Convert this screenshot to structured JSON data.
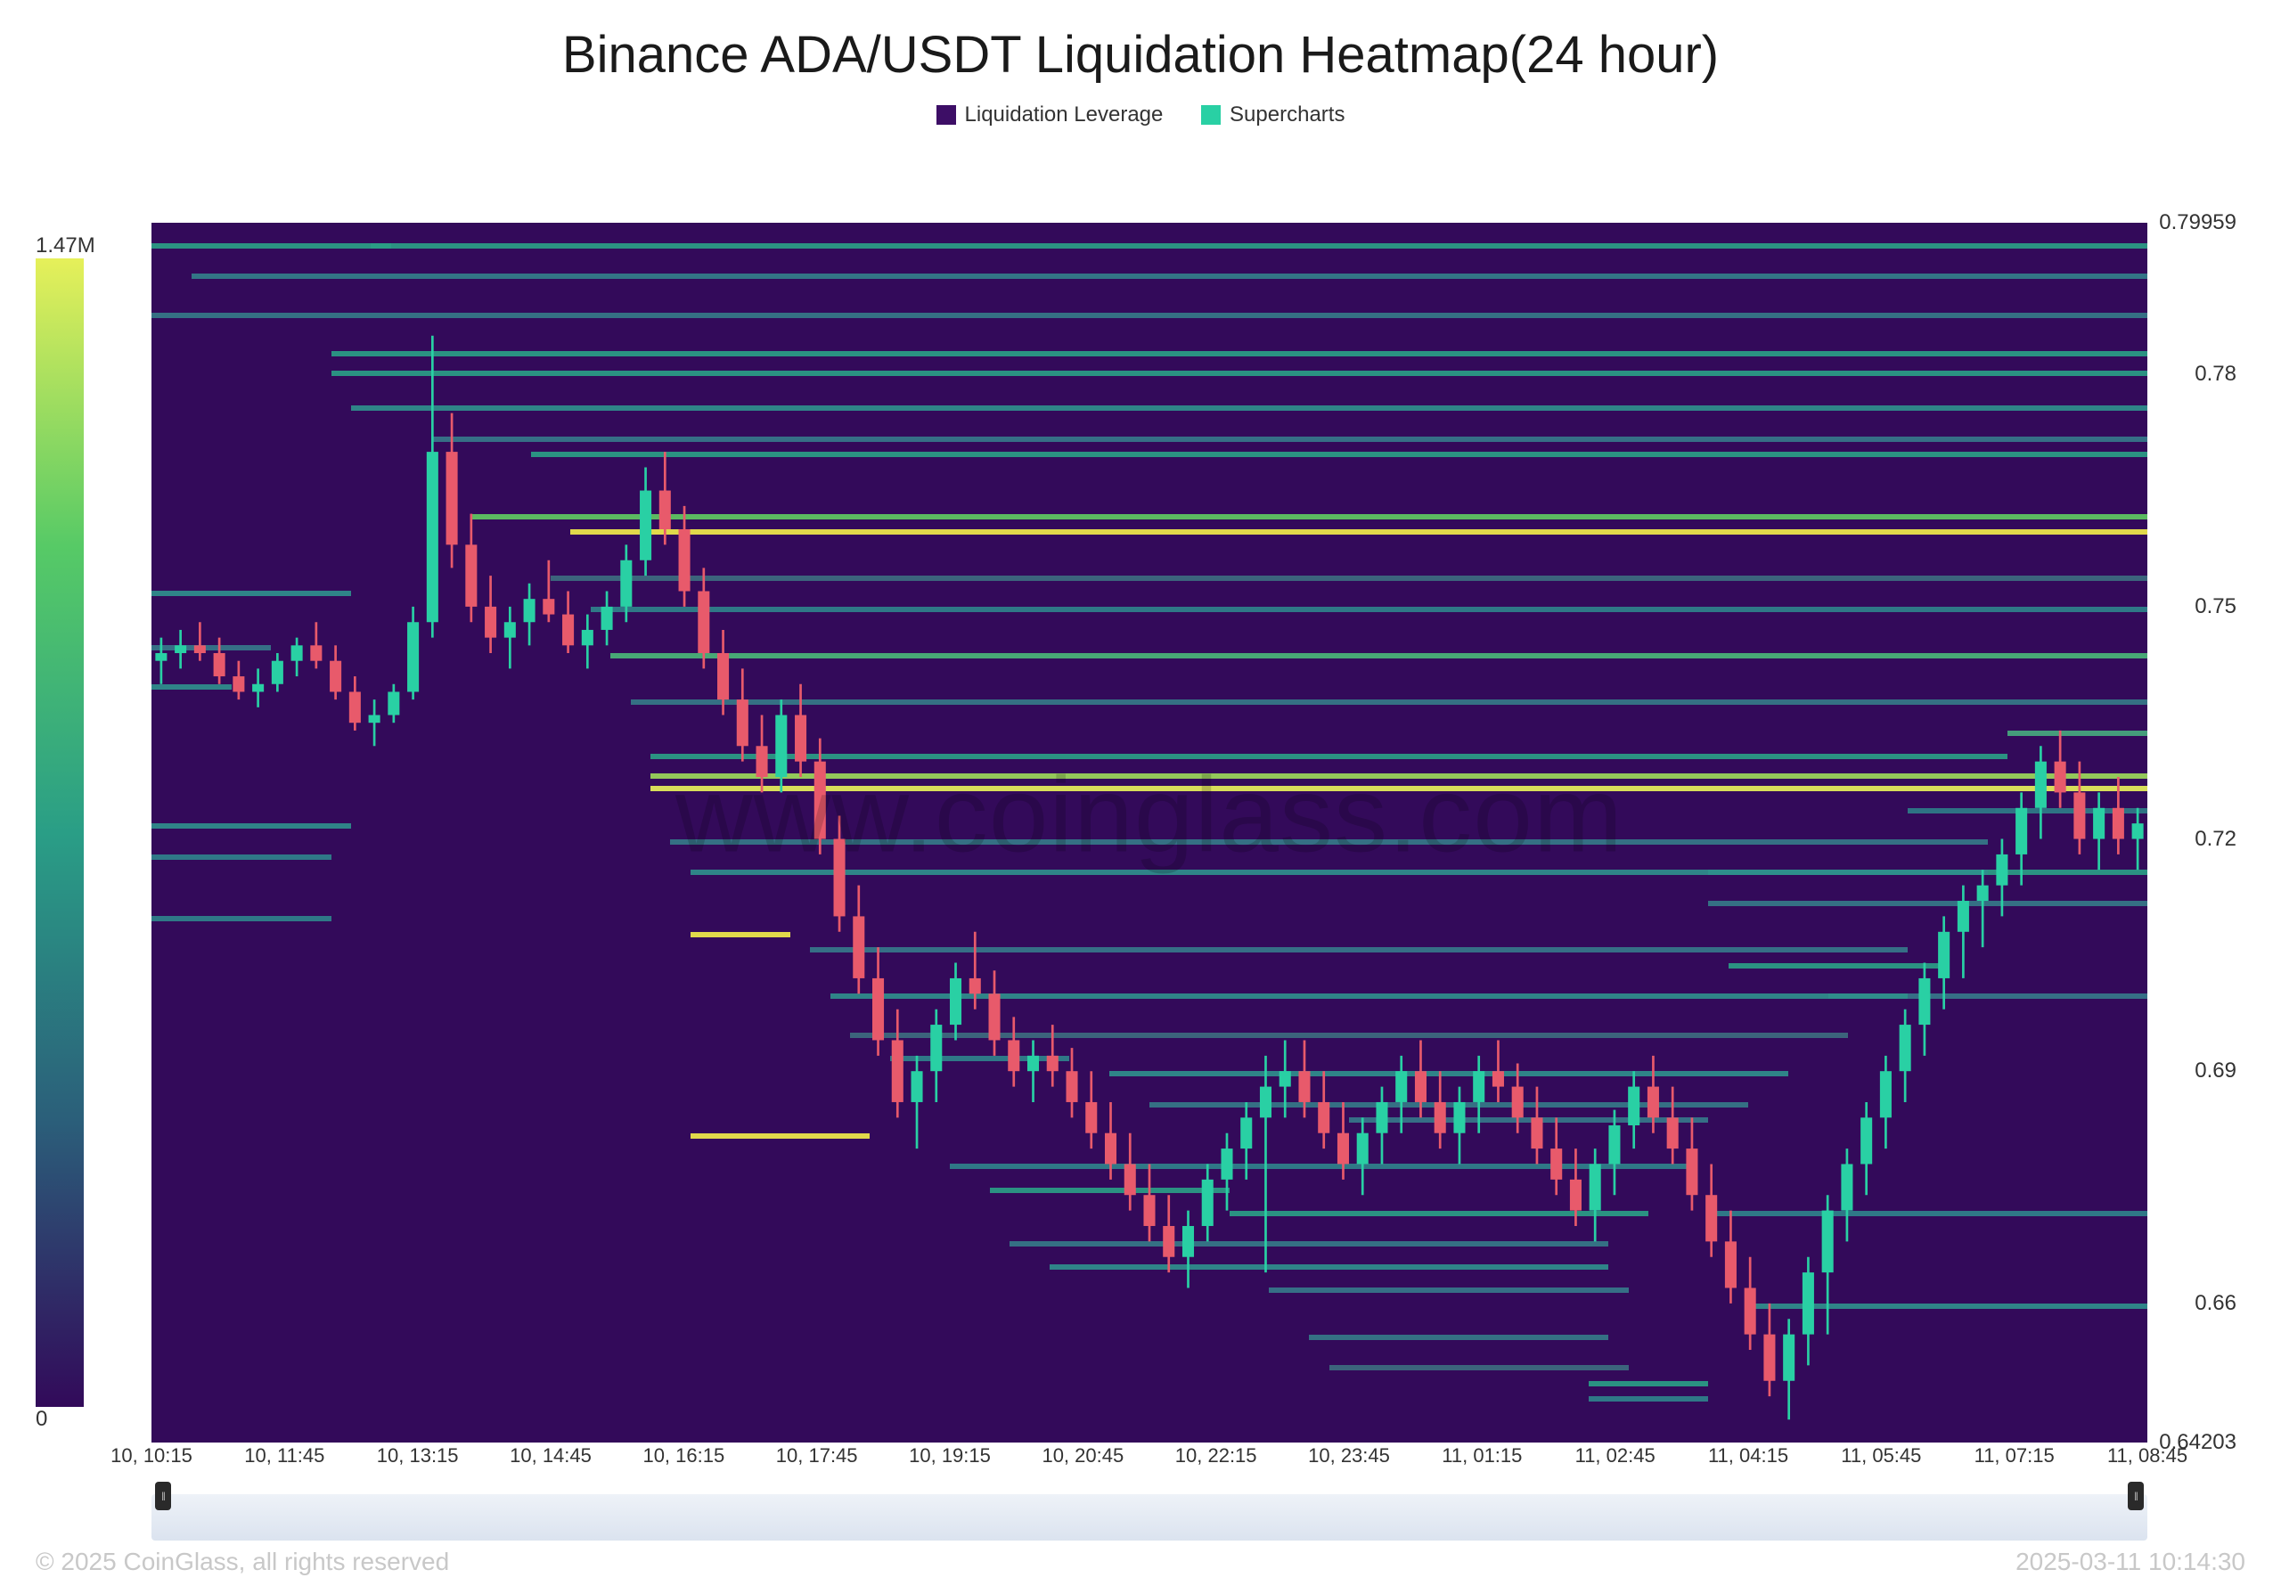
{
  "title": "Binance ADA/USDT Liquidation Heatmap(24 hour)",
  "legend": {
    "leverage": {
      "label": "Liquidation Leverage",
      "color": "#3d0e66"
    },
    "supercharts": {
      "label": "Supercharts",
      "color": "#29d0a4"
    }
  },
  "colorbar": {
    "max_label": "1.47M",
    "min_label": "0",
    "gradient": [
      "#320a5a",
      "#2b5f7a",
      "#2a9e86",
      "#57ca66",
      "#e6f05a"
    ]
  },
  "yaxis": {
    "min": 0.64203,
    "max": 0.79959,
    "ticks": [
      {
        "v": 0.79959,
        "label": "0.79959"
      },
      {
        "v": 0.78,
        "label": "0.78"
      },
      {
        "v": 0.75,
        "label": "0.75"
      },
      {
        "v": 0.72,
        "label": "0.72"
      },
      {
        "v": 0.69,
        "label": "0.69"
      },
      {
        "v": 0.66,
        "label": "0.66"
      },
      {
        "v": 0.64203,
        "label": "0.64203"
      }
    ]
  },
  "xaxis": {
    "ticks": [
      "10, 10:15",
      "10, 11:45",
      "10, 13:15",
      "10, 14:45",
      "10, 16:15",
      "10, 17:45",
      "10, 19:15",
      "10, 20:45",
      "10, 22:15",
      "10, 23:45",
      "11, 01:15",
      "11, 02:45",
      "11, 04:15",
      "11, 05:45",
      "11, 07:15",
      "11, 08:45"
    ]
  },
  "watermark": "www.coinglass.com",
  "footer": {
    "copyright": "© 2025 CoinGlass, all rights reserved",
    "timestamp": "2025-03-11 10:14:30"
  },
  "chart": {
    "type": "heatmap+candlestick",
    "background": "#330a5a",
    "candle_up_color": "#29d0a4",
    "candle_down_color": "#e85a6b",
    "wick_color_up": "#29d0a4",
    "wick_color_down": "#e85a6b",
    "heat_lines": [
      {
        "y": 0.797,
        "x0": 0.0,
        "x1": 0.12,
        "c": "#2a9e86"
      },
      {
        "y": 0.797,
        "x0": 0.11,
        "x1": 1.0,
        "c": "#2a9e86"
      },
      {
        "y": 0.793,
        "x0": 0.02,
        "x1": 1.0,
        "c": "#337f8a"
      },
      {
        "y": 0.788,
        "x0": 0.0,
        "x1": 1.0,
        "c": "#357a88"
      },
      {
        "y": 0.783,
        "x0": 0.09,
        "x1": 1.0,
        "c": "#2a9e86"
      },
      {
        "y": 0.7805,
        "x0": 0.09,
        "x1": 1.0,
        "c": "#2a9e86"
      },
      {
        "y": 0.776,
        "x0": 0.1,
        "x1": 1.0,
        "c": "#2f8f8c"
      },
      {
        "y": 0.772,
        "x0": 0.14,
        "x1": 1.0,
        "c": "#36788a"
      },
      {
        "y": 0.77,
        "x0": 0.19,
        "x1": 1.0,
        "c": "#2a9e86"
      },
      {
        "y": 0.762,
        "x0": 0.16,
        "x1": 1.0,
        "c": "#5fca62"
      },
      {
        "y": 0.76,
        "x0": 0.21,
        "x1": 1.0,
        "c": "#f0ec4a"
      },
      {
        "y": 0.754,
        "x0": 0.2,
        "x1": 1.0,
        "c": "#3d6c7f"
      },
      {
        "y": 0.752,
        "x0": 0.0,
        "x1": 0.1,
        "c": "#2f8f8c"
      },
      {
        "y": 0.75,
        "x0": 0.22,
        "x1": 1.0,
        "c": "#2f828b"
      },
      {
        "y": 0.745,
        "x0": 0.0,
        "x1": 0.06,
        "c": "#36788a"
      },
      {
        "y": 0.744,
        "x0": 0.23,
        "x1": 1.0,
        "c": "#4ab678"
      },
      {
        "y": 0.74,
        "x0": 0.0,
        "x1": 0.04,
        "c": "#2f8f8c"
      },
      {
        "y": 0.738,
        "x0": 0.24,
        "x1": 1.0,
        "c": "#357a88"
      },
      {
        "y": 0.734,
        "x0": 0.93,
        "x1": 1.0,
        "c": "#46aa7e"
      },
      {
        "y": 0.731,
        "x0": 0.25,
        "x1": 0.93,
        "c": "#2a9e86"
      },
      {
        "y": 0.7285,
        "x0": 0.25,
        "x1": 1.0,
        "c": "#9cd95a"
      },
      {
        "y": 0.7268,
        "x0": 0.25,
        "x1": 1.0,
        "c": "#e6f05a"
      },
      {
        "y": 0.724,
        "x0": 0.88,
        "x1": 1.0,
        "c": "#2e7d88"
      },
      {
        "y": 0.722,
        "x0": 0.0,
        "x1": 0.1,
        "c": "#2f8f8c"
      },
      {
        "y": 0.72,
        "x0": 0.26,
        "x1": 0.92,
        "c": "#357a88"
      },
      {
        "y": 0.718,
        "x0": 0.0,
        "x1": 0.09,
        "c": "#2f828b"
      },
      {
        "y": 0.716,
        "x0": 0.27,
        "x1": 0.92,
        "c": "#2f8f8c"
      },
      {
        "y": 0.716,
        "x0": 0.78,
        "x1": 1.0,
        "c": "#2a9e86"
      },
      {
        "y": 0.712,
        "x0": 0.78,
        "x1": 1.0,
        "c": "#357a88"
      },
      {
        "y": 0.71,
        "x0": 0.0,
        "x1": 0.09,
        "c": "#2f828b"
      },
      {
        "y": 0.708,
        "x0": 0.27,
        "x1": 0.32,
        "c": "#f0ec4a"
      },
      {
        "y": 0.706,
        "x0": 0.33,
        "x1": 0.88,
        "c": "#36788a"
      },
      {
        "y": 0.704,
        "x0": 0.79,
        "x1": 0.9,
        "c": "#2a9e86"
      },
      {
        "y": 0.7,
        "x0": 0.34,
        "x1": 0.88,
        "c": "#2f8f8c"
      },
      {
        "y": 0.7,
        "x0": 0.84,
        "x1": 1.0,
        "c": "#36788a"
      },
      {
        "y": 0.695,
        "x0": 0.35,
        "x1": 0.85,
        "c": "#3d6c7f"
      },
      {
        "y": 0.692,
        "x0": 0.37,
        "x1": 0.46,
        "c": "#2f828b"
      },
      {
        "y": 0.69,
        "x0": 0.48,
        "x1": 0.82,
        "c": "#2f8f8c"
      },
      {
        "y": 0.686,
        "x0": 0.5,
        "x1": 0.8,
        "c": "#357a88"
      },
      {
        "y": 0.684,
        "x0": 0.6,
        "x1": 0.78,
        "c": "#36788a"
      },
      {
        "y": 0.682,
        "x0": 0.27,
        "x1": 0.36,
        "c": "#f0ec4a"
      },
      {
        "y": 0.678,
        "x0": 0.4,
        "x1": 0.77,
        "c": "#2f828b"
      },
      {
        "y": 0.675,
        "x0": 0.42,
        "x1": 0.54,
        "c": "#2a9e86"
      },
      {
        "y": 0.672,
        "x0": 0.54,
        "x1": 0.75,
        "c": "#2a9e86"
      },
      {
        "y": 0.672,
        "x0": 0.78,
        "x1": 1.0,
        "c": "#2f828b"
      },
      {
        "y": 0.668,
        "x0": 0.43,
        "x1": 0.73,
        "c": "#357a88"
      },
      {
        "y": 0.665,
        "x0": 0.45,
        "x1": 0.73,
        "c": "#2f8f8c"
      },
      {
        "y": 0.662,
        "x0": 0.56,
        "x1": 0.74,
        "c": "#36788a"
      },
      {
        "y": 0.66,
        "x0": 0.8,
        "x1": 1.0,
        "c": "#2f8f8c"
      },
      {
        "y": 0.656,
        "x0": 0.58,
        "x1": 0.73,
        "c": "#357a88"
      },
      {
        "y": 0.652,
        "x0": 0.59,
        "x1": 0.74,
        "c": "#3d6c7f"
      },
      {
        "y": 0.65,
        "x0": 0.72,
        "x1": 0.78,
        "c": "#2a9e86"
      },
      {
        "y": 0.648,
        "x0": 0.72,
        "x1": 0.78,
        "c": "#2f828b"
      }
    ],
    "candles": [
      {
        "o": 0.743,
        "h": 0.746,
        "l": 0.74,
        "c": 0.744
      },
      {
        "o": 0.744,
        "h": 0.747,
        "l": 0.742,
        "c": 0.745
      },
      {
        "o": 0.745,
        "h": 0.748,
        "l": 0.743,
        "c": 0.744
      },
      {
        "o": 0.744,
        "h": 0.746,
        "l": 0.74,
        "c": 0.741
      },
      {
        "o": 0.741,
        "h": 0.743,
        "l": 0.738,
        "c": 0.739
      },
      {
        "o": 0.739,
        "h": 0.742,
        "l": 0.737,
        "c": 0.74
      },
      {
        "o": 0.74,
        "h": 0.744,
        "l": 0.739,
        "c": 0.743
      },
      {
        "o": 0.743,
        "h": 0.746,
        "l": 0.741,
        "c": 0.745
      },
      {
        "o": 0.745,
        "h": 0.748,
        "l": 0.742,
        "c": 0.743
      },
      {
        "o": 0.743,
        "h": 0.745,
        "l": 0.738,
        "c": 0.739
      },
      {
        "o": 0.739,
        "h": 0.741,
        "l": 0.734,
        "c": 0.735
      },
      {
        "o": 0.735,
        "h": 0.738,
        "l": 0.732,
        "c": 0.736
      },
      {
        "o": 0.736,
        "h": 0.74,
        "l": 0.735,
        "c": 0.739
      },
      {
        "o": 0.739,
        "h": 0.75,
        "l": 0.738,
        "c": 0.748
      },
      {
        "o": 0.748,
        "h": 0.785,
        "l": 0.746,
        "c": 0.77
      },
      {
        "o": 0.77,
        "h": 0.775,
        "l": 0.755,
        "c": 0.758
      },
      {
        "o": 0.758,
        "h": 0.762,
        "l": 0.748,
        "c": 0.75
      },
      {
        "o": 0.75,
        "h": 0.754,
        "l": 0.744,
        "c": 0.746
      },
      {
        "o": 0.746,
        "h": 0.75,
        "l": 0.742,
        "c": 0.748
      },
      {
        "o": 0.748,
        "h": 0.753,
        "l": 0.745,
        "c": 0.751
      },
      {
        "o": 0.751,
        "h": 0.756,
        "l": 0.748,
        "c": 0.749
      },
      {
        "o": 0.749,
        "h": 0.752,
        "l": 0.744,
        "c": 0.745
      },
      {
        "o": 0.745,
        "h": 0.749,
        "l": 0.742,
        "c": 0.747
      },
      {
        "o": 0.747,
        "h": 0.752,
        "l": 0.745,
        "c": 0.75
      },
      {
        "o": 0.75,
        "h": 0.758,
        "l": 0.748,
        "c": 0.756
      },
      {
        "o": 0.756,
        "h": 0.768,
        "l": 0.754,
        "c": 0.765
      },
      {
        "o": 0.765,
        "h": 0.77,
        "l": 0.758,
        "c": 0.76
      },
      {
        "o": 0.76,
        "h": 0.763,
        "l": 0.75,
        "c": 0.752
      },
      {
        "o": 0.752,
        "h": 0.755,
        "l": 0.742,
        "c": 0.744
      },
      {
        "o": 0.744,
        "h": 0.747,
        "l": 0.736,
        "c": 0.738
      },
      {
        "o": 0.738,
        "h": 0.742,
        "l": 0.73,
        "c": 0.732
      },
      {
        "o": 0.732,
        "h": 0.736,
        "l": 0.726,
        "c": 0.728
      },
      {
        "o": 0.728,
        "h": 0.738,
        "l": 0.726,
        "c": 0.736
      },
      {
        "o": 0.736,
        "h": 0.74,
        "l": 0.728,
        "c": 0.73
      },
      {
        "o": 0.73,
        "h": 0.733,
        "l": 0.718,
        "c": 0.72
      },
      {
        "o": 0.72,
        "h": 0.723,
        "l": 0.708,
        "c": 0.71
      },
      {
        "o": 0.71,
        "h": 0.714,
        "l": 0.7,
        "c": 0.702
      },
      {
        "o": 0.702,
        "h": 0.706,
        "l": 0.692,
        "c": 0.694
      },
      {
        "o": 0.694,
        "h": 0.698,
        "l": 0.684,
        "c": 0.686
      },
      {
        "o": 0.686,
        "h": 0.692,
        "l": 0.68,
        "c": 0.69
      },
      {
        "o": 0.69,
        "h": 0.698,
        "l": 0.686,
        "c": 0.696
      },
      {
        "o": 0.696,
        "h": 0.704,
        "l": 0.694,
        "c": 0.702
      },
      {
        "o": 0.702,
        "h": 0.708,
        "l": 0.698,
        "c": 0.7
      },
      {
        "o": 0.7,
        "h": 0.703,
        "l": 0.692,
        "c": 0.694
      },
      {
        "o": 0.694,
        "h": 0.697,
        "l": 0.688,
        "c": 0.69
      },
      {
        "o": 0.69,
        "h": 0.694,
        "l": 0.686,
        "c": 0.692
      },
      {
        "o": 0.692,
        "h": 0.696,
        "l": 0.688,
        "c": 0.69
      },
      {
        "o": 0.69,
        "h": 0.693,
        "l": 0.684,
        "c": 0.686
      },
      {
        "o": 0.686,
        "h": 0.69,
        "l": 0.68,
        "c": 0.682
      },
      {
        "o": 0.682,
        "h": 0.686,
        "l": 0.676,
        "c": 0.678
      },
      {
        "o": 0.678,
        "h": 0.682,
        "l": 0.672,
        "c": 0.674
      },
      {
        "o": 0.674,
        "h": 0.678,
        "l": 0.668,
        "c": 0.67
      },
      {
        "o": 0.67,
        "h": 0.674,
        "l": 0.664,
        "c": 0.666
      },
      {
        "o": 0.666,
        "h": 0.672,
        "l": 0.662,
        "c": 0.67
      },
      {
        "o": 0.67,
        "h": 0.678,
        "l": 0.668,
        "c": 0.676
      },
      {
        "o": 0.676,
        "h": 0.682,
        "l": 0.672,
        "c": 0.68
      },
      {
        "o": 0.68,
        "h": 0.686,
        "l": 0.676,
        "c": 0.684
      },
      {
        "o": 0.684,
        "h": 0.692,
        "l": 0.664,
        "c": 0.688
      },
      {
        "o": 0.688,
        "h": 0.694,
        "l": 0.684,
        "c": 0.69
      },
      {
        "o": 0.69,
        "h": 0.694,
        "l": 0.684,
        "c": 0.686
      },
      {
        "o": 0.686,
        "h": 0.69,
        "l": 0.68,
        "c": 0.682
      },
      {
        "o": 0.682,
        "h": 0.686,
        "l": 0.676,
        "c": 0.678
      },
      {
        "o": 0.678,
        "h": 0.684,
        "l": 0.674,
        "c": 0.682
      },
      {
        "o": 0.682,
        "h": 0.688,
        "l": 0.678,
        "c": 0.686
      },
      {
        "o": 0.686,
        "h": 0.692,
        "l": 0.682,
        "c": 0.69
      },
      {
        "o": 0.69,
        "h": 0.694,
        "l": 0.684,
        "c": 0.686
      },
      {
        "o": 0.686,
        "h": 0.69,
        "l": 0.68,
        "c": 0.682
      },
      {
        "o": 0.682,
        "h": 0.688,
        "l": 0.678,
        "c": 0.686
      },
      {
        "o": 0.686,
        "h": 0.692,
        "l": 0.682,
        "c": 0.69
      },
      {
        "o": 0.69,
        "h": 0.694,
        "l": 0.686,
        "c": 0.688
      },
      {
        "o": 0.688,
        "h": 0.691,
        "l": 0.682,
        "c": 0.684
      },
      {
        "o": 0.684,
        "h": 0.688,
        "l": 0.678,
        "c": 0.68
      },
      {
        "o": 0.68,
        "h": 0.684,
        "l": 0.674,
        "c": 0.676
      },
      {
        "o": 0.676,
        "h": 0.68,
        "l": 0.67,
        "c": 0.672
      },
      {
        "o": 0.672,
        "h": 0.68,
        "l": 0.668,
        "c": 0.678
      },
      {
        "o": 0.678,
        "h": 0.685,
        "l": 0.674,
        "c": 0.683
      },
      {
        "o": 0.683,
        "h": 0.69,
        "l": 0.68,
        "c": 0.688
      },
      {
        "o": 0.688,
        "h": 0.692,
        "l": 0.682,
        "c": 0.684
      },
      {
        "o": 0.684,
        "h": 0.688,
        "l": 0.678,
        "c": 0.68
      },
      {
        "o": 0.68,
        "h": 0.684,
        "l": 0.672,
        "c": 0.674
      },
      {
        "o": 0.674,
        "h": 0.678,
        "l": 0.666,
        "c": 0.668
      },
      {
        "o": 0.668,
        "h": 0.672,
        "l": 0.66,
        "c": 0.662
      },
      {
        "o": 0.662,
        "h": 0.666,
        "l": 0.654,
        "c": 0.656
      },
      {
        "o": 0.656,
        "h": 0.66,
        "l": 0.648,
        "c": 0.65
      },
      {
        "o": 0.65,
        "h": 0.658,
        "l": 0.645,
        "c": 0.656
      },
      {
        "o": 0.656,
        "h": 0.666,
        "l": 0.652,
        "c": 0.664
      },
      {
        "o": 0.664,
        "h": 0.674,
        "l": 0.656,
        "c": 0.672
      },
      {
        "o": 0.672,
        "h": 0.68,
        "l": 0.668,
        "c": 0.678
      },
      {
        "o": 0.678,
        "h": 0.686,
        "l": 0.674,
        "c": 0.684
      },
      {
        "o": 0.684,
        "h": 0.692,
        "l": 0.68,
        "c": 0.69
      },
      {
        "o": 0.69,
        "h": 0.698,
        "l": 0.686,
        "c": 0.696
      },
      {
        "o": 0.696,
        "h": 0.704,
        "l": 0.692,
        "c": 0.702
      },
      {
        "o": 0.702,
        "h": 0.71,
        "l": 0.698,
        "c": 0.708
      },
      {
        "o": 0.708,
        "h": 0.714,
        "l": 0.702,
        "c": 0.712
      },
      {
        "o": 0.712,
        "h": 0.716,
        "l": 0.706,
        "c": 0.714
      },
      {
        "o": 0.714,
        "h": 0.72,
        "l": 0.71,
        "c": 0.718
      },
      {
        "o": 0.718,
        "h": 0.726,
        "l": 0.714,
        "c": 0.724
      },
      {
        "o": 0.724,
        "h": 0.732,
        "l": 0.72,
        "c": 0.73
      },
      {
        "o": 0.73,
        "h": 0.734,
        "l": 0.724,
        "c": 0.726
      },
      {
        "o": 0.726,
        "h": 0.73,
        "l": 0.718,
        "c": 0.72
      },
      {
        "o": 0.72,
        "h": 0.726,
        "l": 0.716,
        "c": 0.724
      },
      {
        "o": 0.724,
        "h": 0.728,
        "l": 0.718,
        "c": 0.72
      },
      {
        "o": 0.72,
        "h": 0.724,
        "l": 0.716,
        "c": 0.722
      }
    ]
  }
}
